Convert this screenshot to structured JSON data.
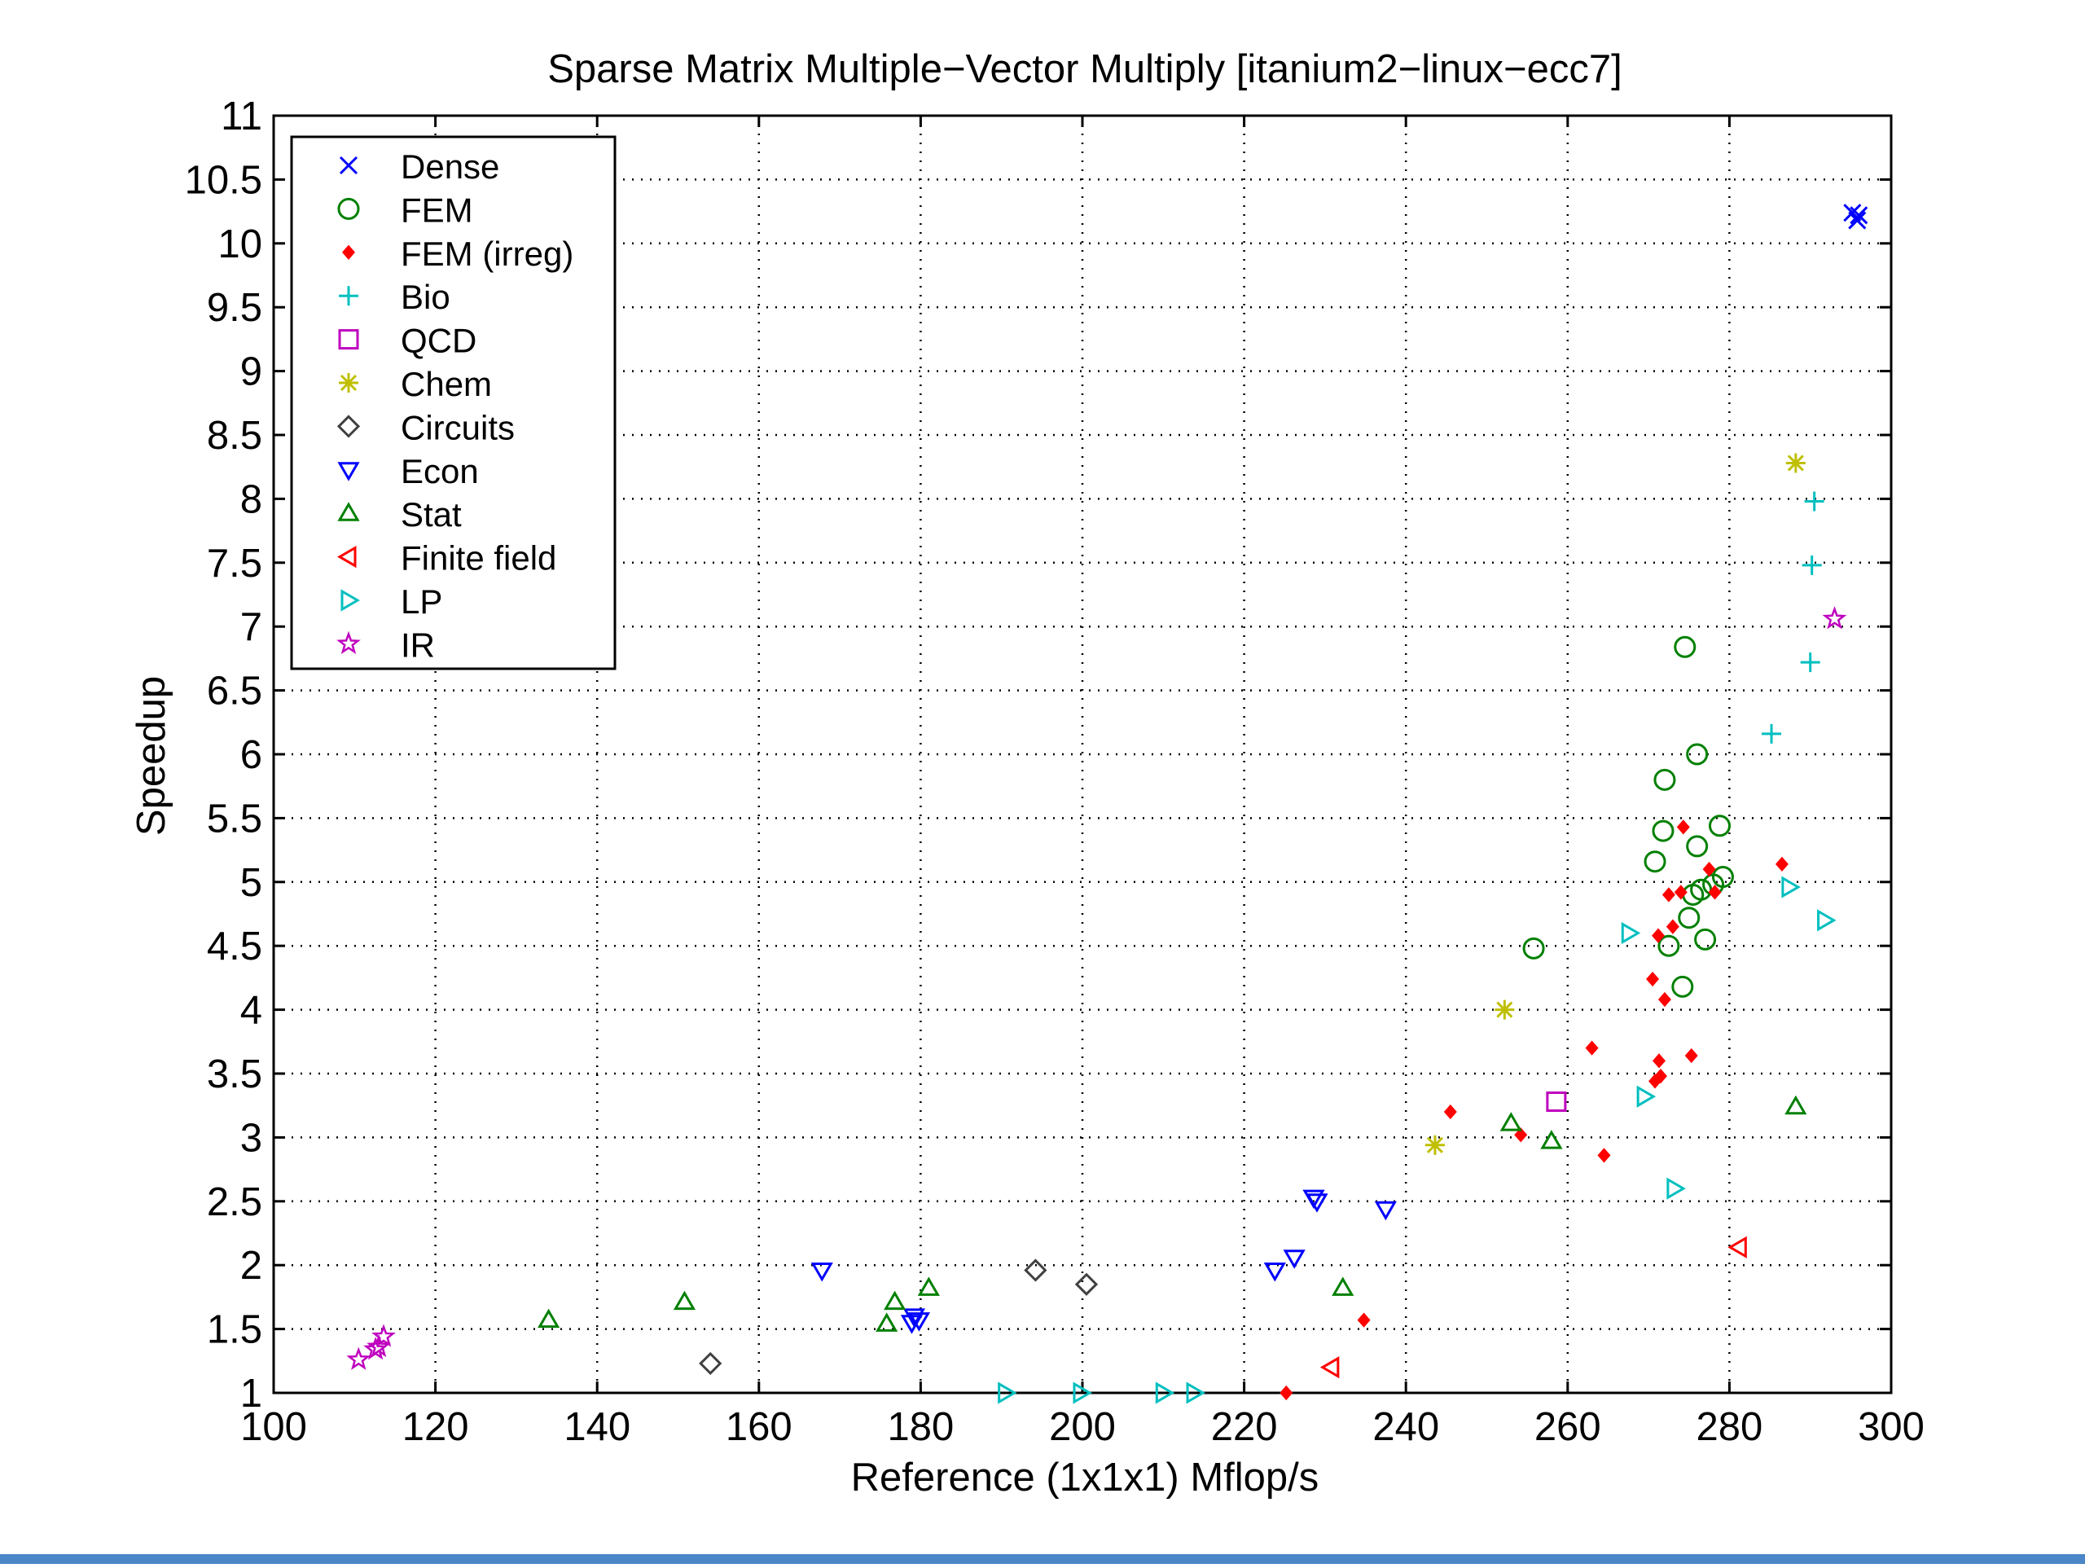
{
  "chart_data": {
    "type": "scatter",
    "title": "Sparse Matrix Multiple−Vector Multiply [itanium2−linux−ecc7]",
    "xlabel": "Reference (1x1x1) Mflop/s",
    "ylabel": "Speedup",
    "xlim": [
      100,
      300
    ],
    "ylim": [
      1,
      11
    ],
    "xticks": [
      100,
      120,
      140,
      160,
      180,
      200,
      220,
      240,
      260,
      280,
      300
    ],
    "yticks": [
      1,
      1.5,
      2,
      2.5,
      3,
      3.5,
      4,
      4.5,
      5,
      5.5,
      6,
      6.5,
      7,
      7.5,
      8,
      8.5,
      9,
      9.5,
      10,
      10.5,
      11
    ],
    "ytick_labels": [
      "1",
      "1.5",
      "2",
      "2.5",
      "3",
      "3.5",
      "4",
      "4.5",
      "5",
      "5.5",
      "6",
      "6.5",
      "7",
      "7.5",
      "8",
      "8.5",
      "9",
      "9.5",
      "10",
      "10.5",
      "11"
    ],
    "grid": true,
    "legend_position": "top-left",
    "series": [
      {
        "name": "Dense",
        "marker": "x",
        "color": "#0000ff",
        "points": [
          [
            295.2,
            10.24
          ],
          [
            295.8,
            10.18
          ],
          [
            296.0,
            10.22
          ]
        ]
      },
      {
        "name": "FEM",
        "marker": "circle",
        "color": "#008000",
        "points": [
          [
            274.5,
            6.84
          ],
          [
            276.0,
            6.0
          ],
          [
            272.0,
            5.8
          ],
          [
            271.8,
            5.4
          ],
          [
            278.8,
            5.44
          ],
          [
            276.0,
            5.28
          ],
          [
            270.8,
            5.16
          ],
          [
            279.2,
            5.04
          ],
          [
            278.0,
            4.98
          ],
          [
            276.5,
            4.94
          ],
          [
            275.5,
            4.9
          ],
          [
            275.0,
            4.72
          ],
          [
            277.0,
            4.55
          ],
          [
            272.5,
            4.5
          ],
          [
            255.8,
            4.48
          ],
          [
            274.2,
            4.18
          ]
        ]
      },
      {
        "name": "FEM (irreg)",
        "marker": "diamond-filled",
        "color": "#ff0000",
        "points": [
          [
            274.3,
            5.43
          ],
          [
            286.5,
            5.14
          ],
          [
            277.5,
            5.1
          ],
          [
            272.5,
            4.9
          ],
          [
            274.0,
            4.92
          ],
          [
            278.2,
            4.92
          ],
          [
            273.0,
            4.65
          ],
          [
            271.2,
            4.58
          ],
          [
            270.5,
            4.24
          ],
          [
            272.0,
            4.08
          ],
          [
            263.0,
            3.7
          ],
          [
            271.3,
            3.6
          ],
          [
            275.3,
            3.64
          ],
          [
            271.5,
            3.48
          ],
          [
            270.8,
            3.44
          ],
          [
            245.5,
            3.2
          ],
          [
            254.2,
            3.02
          ],
          [
            264.5,
            2.86
          ],
          [
            234.8,
            1.57
          ],
          [
            225.2,
            1.0
          ]
        ]
      },
      {
        "name": "Bio",
        "marker": "plus",
        "color": "#00bfbf",
        "points": [
          [
            290.5,
            7.98
          ],
          [
            290.2,
            7.48
          ],
          [
            290.0,
            6.72
          ],
          [
            285.2,
            6.16
          ]
        ]
      },
      {
        "name": "QCD",
        "marker": "square",
        "color": "#bf00bf",
        "points": [
          [
            258.6,
            3.28
          ]
        ]
      },
      {
        "name": "Chem",
        "marker": "asterisk",
        "color": "#bfbf00",
        "points": [
          [
            288.2,
            8.28
          ],
          [
            252.2,
            4.0
          ],
          [
            243.6,
            2.94
          ]
        ]
      },
      {
        "name": "Circuits",
        "marker": "diamond",
        "color": "#404040",
        "points": [
          [
            194.2,
            1.96
          ],
          [
            200.5,
            1.85
          ],
          [
            154.0,
            1.23
          ]
        ]
      },
      {
        "name": "Econ",
        "marker": "triangle-down",
        "color": "#0000ff",
        "points": [
          [
            228.6,
            2.53
          ],
          [
            229.0,
            2.5
          ],
          [
            237.5,
            2.44
          ],
          [
            226.2,
            2.06
          ],
          [
            223.8,
            1.96
          ],
          [
            167.8,
            1.96
          ],
          [
            179.2,
            1.6
          ],
          [
            179.8,
            1.57
          ],
          [
            178.9,
            1.55
          ]
        ]
      },
      {
        "name": "Stat",
        "marker": "triangle-up",
        "color": "#008000",
        "points": [
          [
            288.2,
            3.24
          ],
          [
            253.0,
            3.11
          ],
          [
            258.0,
            2.97
          ],
          [
            232.2,
            1.82
          ],
          [
            181.0,
            1.82
          ],
          [
            176.8,
            1.71
          ],
          [
            150.8,
            1.71
          ],
          [
            175.8,
            1.54
          ],
          [
            134.0,
            1.57
          ]
        ]
      },
      {
        "name": "Finite field",
        "marker": "triangle-left",
        "color": "#ff0000",
        "points": [
          [
            281.2,
            2.14
          ],
          [
            230.8,
            1.2
          ]
        ]
      },
      {
        "name": "LP",
        "marker": "triangle-right",
        "color": "#00bfbf",
        "points": [
          [
            287.4,
            4.96
          ],
          [
            291.8,
            4.7
          ],
          [
            267.6,
            4.6
          ],
          [
            269.5,
            3.32
          ],
          [
            273.2,
            2.6
          ],
          [
            190.5,
            1.0
          ],
          [
            199.8,
            1.0
          ],
          [
            210.0,
            1.0
          ],
          [
            213.8,
            1.0
          ]
        ]
      },
      {
        "name": "IR",
        "marker": "star",
        "color": "#bf00bf",
        "points": [
          [
            293.0,
            7.06
          ],
          [
            113.6,
            1.44
          ],
          [
            113.0,
            1.36
          ],
          [
            112.6,
            1.34
          ],
          [
            110.5,
            1.26
          ]
        ]
      }
    ]
  }
}
